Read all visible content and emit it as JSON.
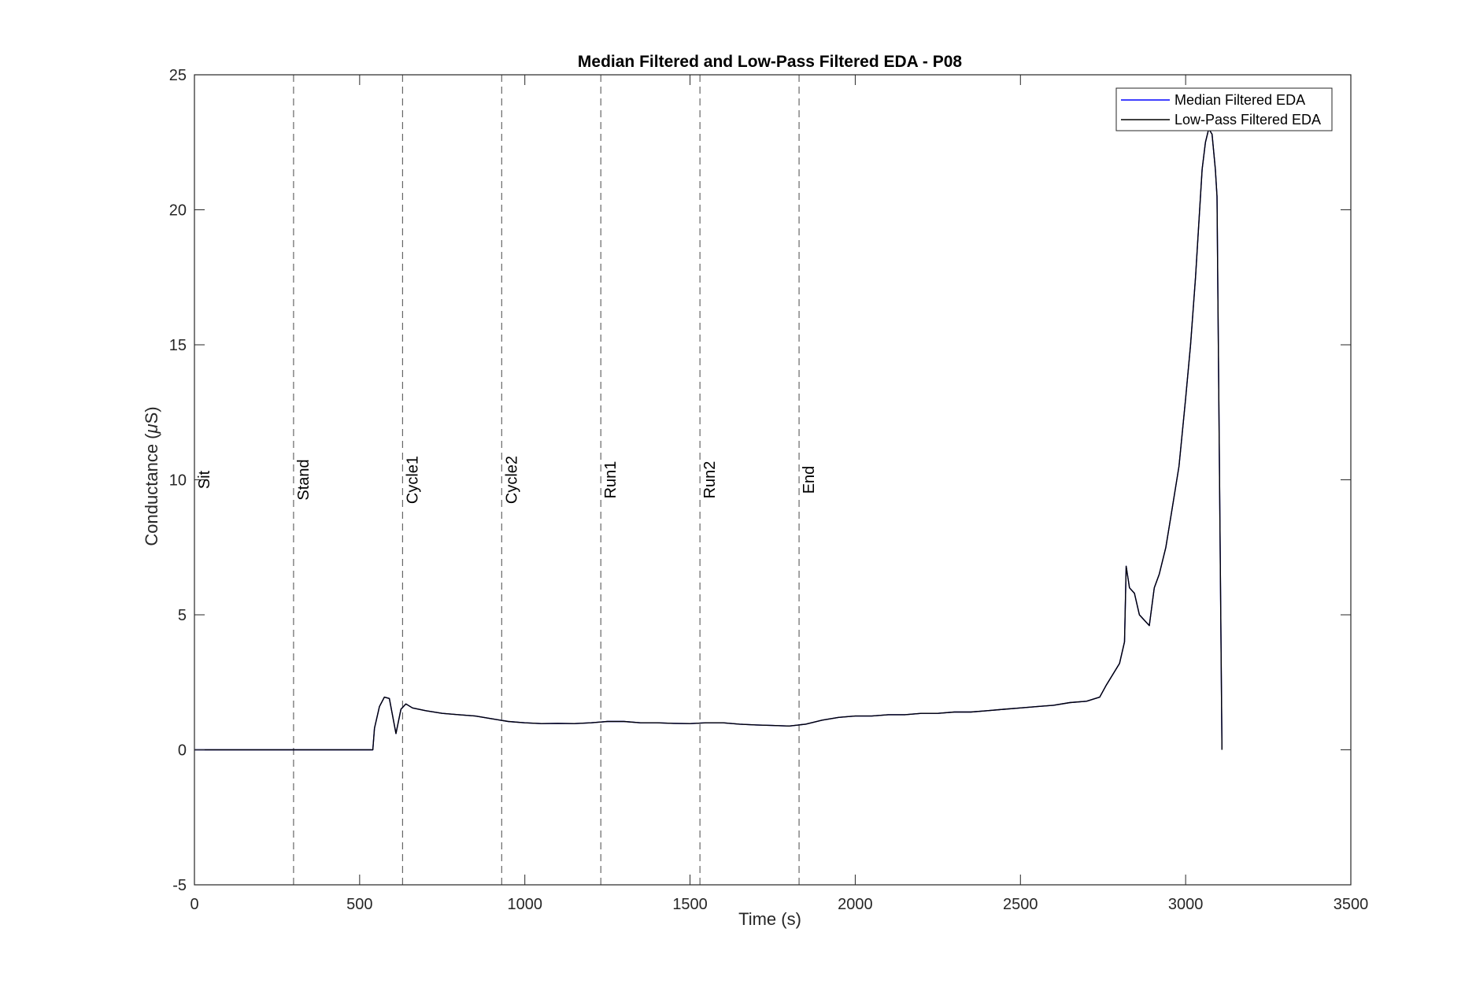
{
  "chart_data": {
    "type": "line",
    "title": "Median Filtered and Low-Pass Filtered EDA - P08",
    "xlabel": "Time (s)",
    "ylabel_prefix": "Conductance (",
    "ylabel_mu": "μ",
    "ylabel_suffix": "S)",
    "xlim": [
      0,
      3500
    ],
    "ylim": [
      -5,
      25
    ],
    "xticks": [
      0,
      500,
      1000,
      1500,
      2000,
      2500,
      3000,
      3500
    ],
    "yticks": [
      -5,
      0,
      5,
      10,
      15,
      20,
      25
    ],
    "grid": false,
    "legend_position": "top-right",
    "legend": [
      {
        "label": "Median Filtered EDA",
        "color": "#0000ff"
      },
      {
        "label": "Low-Pass Filtered EDA",
        "color": "#000000"
      }
    ],
    "events": [
      {
        "label": "Sit",
        "x": 0
      },
      {
        "label": "Stand",
        "x": 300
      },
      {
        "label": "Cycle1",
        "x": 630
      },
      {
        "label": "Cycle2",
        "x": 930
      },
      {
        "label": "Run1",
        "x": 1230
      },
      {
        "label": "Run2",
        "x": 1530
      },
      {
        "label": "End",
        "x": 1830
      }
    ],
    "series": [
      {
        "name": "Median Filtered EDA",
        "color": "#0000ff",
        "x": [
          0,
          540,
          545,
          560,
          575,
          590,
          610,
          625,
          640,
          660,
          700,
          750,
          800,
          850,
          900,
          950,
          1000,
          1050,
          1100,
          1150,
          1200,
          1250,
          1300,
          1350,
          1400,
          1450,
          1500,
          1550,
          1600,
          1650,
          1700,
          1750,
          1800,
          1850,
          1900,
          1950,
          2000,
          2050,
          2100,
          2150,
          2200,
          2250,
          2300,
          2350,
          2400,
          2450,
          2500,
          2550,
          2600,
          2650,
          2700,
          2740,
          2760,
          2780,
          2800,
          2815,
          2820,
          2830,
          2845,
          2860,
          2875,
          2890,
          2905,
          2920,
          2940,
          2960,
          2980,
          3000,
          3015,
          3030,
          3040,
          3050,
          3060,
          3070,
          3080,
          3090,
          3095,
          3110
        ],
        "y": [
          0,
          0,
          0.8,
          1.6,
          1.95,
          1.9,
          0.6,
          1.5,
          1.7,
          1.55,
          1.45,
          1.35,
          1.3,
          1.25,
          1.15,
          1.05,
          1.0,
          0.97,
          0.98,
          0.97,
          1.0,
          1.05,
          1.05,
          1.0,
          1.0,
          0.98,
          0.97,
          1.0,
          1.0,
          0.95,
          0.92,
          0.9,
          0.88,
          0.95,
          1.1,
          1.2,
          1.25,
          1.25,
          1.3,
          1.3,
          1.35,
          1.35,
          1.4,
          1.4,
          1.45,
          1.5,
          1.55,
          1.6,
          1.65,
          1.75,
          1.8,
          1.95,
          2.4,
          2.8,
          3.2,
          4.0,
          6.8,
          6.0,
          5.8,
          5.0,
          4.8,
          4.6,
          6.0,
          6.5,
          7.5,
          9.0,
          10.5,
          13.0,
          15.0,
          17.5,
          19.5,
          21.5,
          22.5,
          23.0,
          22.8,
          21.5,
          20.5,
          0
        ]
      },
      {
        "name": "Low-Pass Filtered EDA",
        "color": "#000000",
        "x": [
          0,
          540,
          545,
          560,
          575,
          590,
          610,
          625,
          640,
          660,
          700,
          750,
          800,
          850,
          900,
          950,
          1000,
          1050,
          1100,
          1150,
          1200,
          1250,
          1300,
          1350,
          1400,
          1450,
          1500,
          1550,
          1600,
          1650,
          1700,
          1750,
          1800,
          1850,
          1900,
          1950,
          2000,
          2050,
          2100,
          2150,
          2200,
          2250,
          2300,
          2350,
          2400,
          2450,
          2500,
          2550,
          2600,
          2650,
          2700,
          2740,
          2760,
          2780,
          2800,
          2815,
          2820,
          2830,
          2845,
          2860,
          2875,
          2890,
          2905,
          2920,
          2940,
          2960,
          2980,
          3000,
          3015,
          3030,
          3040,
          3050,
          3060,
          3070,
          3080,
          3090,
          3095,
          3110
        ],
        "y": [
          0,
          0,
          0.8,
          1.6,
          1.95,
          1.9,
          0.6,
          1.5,
          1.7,
          1.55,
          1.45,
          1.35,
          1.3,
          1.25,
          1.15,
          1.05,
          1.0,
          0.97,
          0.98,
          0.97,
          1.0,
          1.05,
          1.05,
          1.0,
          1.0,
          0.98,
          0.97,
          1.0,
          1.0,
          0.95,
          0.92,
          0.9,
          0.88,
          0.95,
          1.1,
          1.2,
          1.25,
          1.25,
          1.3,
          1.3,
          1.35,
          1.35,
          1.4,
          1.4,
          1.45,
          1.5,
          1.55,
          1.6,
          1.65,
          1.75,
          1.8,
          1.95,
          2.4,
          2.8,
          3.2,
          4.0,
          6.8,
          6.0,
          5.8,
          5.0,
          4.8,
          4.6,
          6.0,
          6.5,
          7.5,
          9.0,
          10.5,
          13.0,
          15.0,
          17.5,
          19.5,
          21.5,
          22.5,
          23.0,
          22.8,
          21.5,
          20.5,
          0
        ]
      }
    ]
  }
}
